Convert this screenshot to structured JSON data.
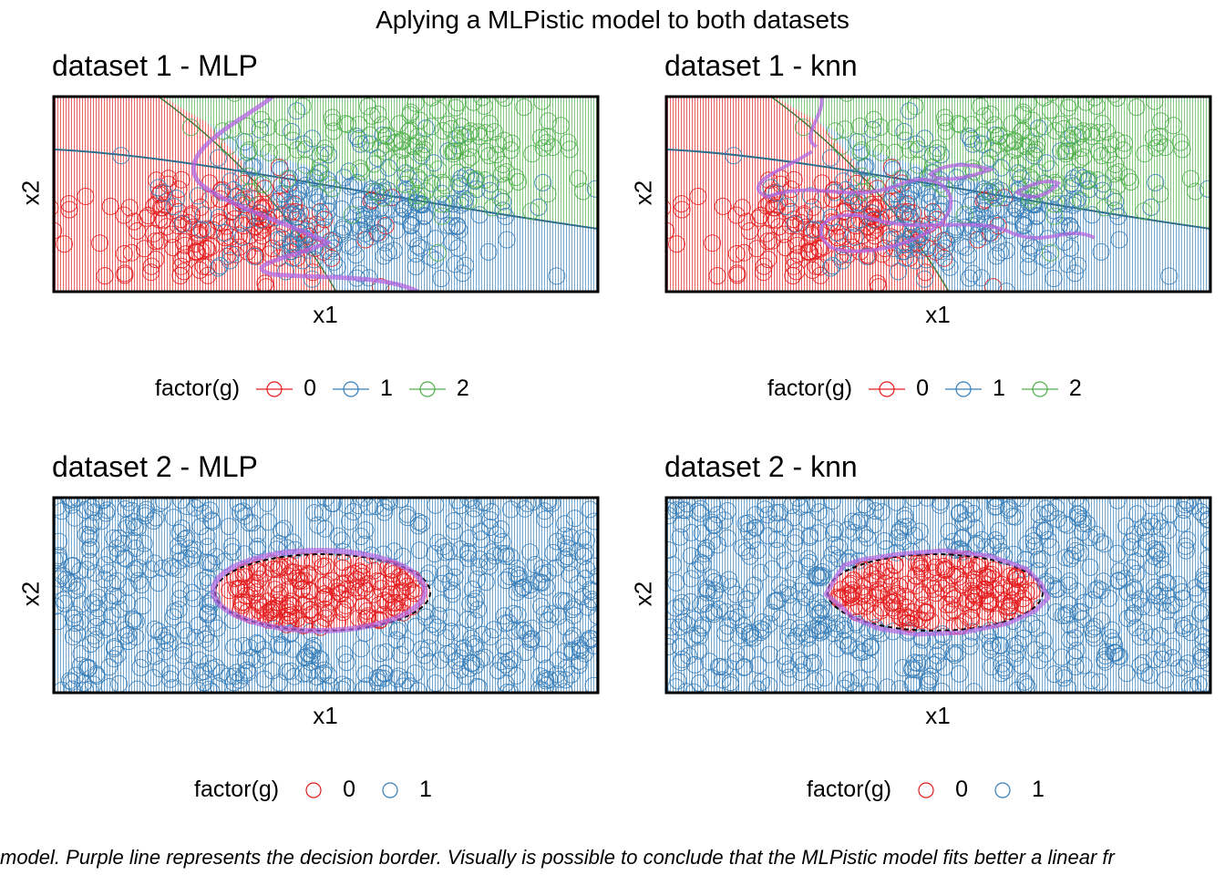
{
  "title": "Aplying a MLPistic model to both datasets",
  "caption": "model. Purple line represents the decision border. Visually is possible to conclude that the MLPistic model fits better a linear  fr",
  "colors": {
    "class0": "#e41a1c",
    "class1": "#377eb8",
    "class2": "#4daf4a",
    "boundary": "#b266e0",
    "true_boundary": "#000000",
    "panel_border": "#000000"
  },
  "chart_data": [
    {
      "type": "scatter",
      "title": "dataset 1 - MLP",
      "xlabel": "x1",
      "ylabel": "x2",
      "legend": {
        "title": "factor(g)",
        "position": "bottom",
        "keys": [
          "0",
          "1",
          "2"
        ]
      },
      "background": "decision-regions",
      "decision_boundary": "purple line",
      "axis_ticks": "none"
    },
    {
      "type": "scatter",
      "title": "dataset 1 - knn",
      "xlabel": "x1",
      "ylabel": "x2",
      "legend": {
        "title": "factor(g)",
        "position": "bottom",
        "keys": [
          "0",
          "1",
          "2"
        ]
      },
      "background": "decision-regions",
      "decision_boundary": "purple line",
      "axis_ticks": "none"
    },
    {
      "type": "scatter",
      "title": "dataset 2 - MLP",
      "xlabel": "x1",
      "ylabel": "x2",
      "legend": {
        "title": "factor(g)",
        "position": "bottom",
        "keys": [
          "0",
          "1"
        ]
      },
      "background": "decision-regions",
      "decision_boundary": "purple line",
      "true_boundary": "black dashed ellipse",
      "axis_ticks": "none"
    },
    {
      "type": "scatter",
      "title": "dataset 2 - knn",
      "xlabel": "x1",
      "ylabel": "x2",
      "legend": {
        "title": "factor(g)",
        "position": "bottom",
        "keys": [
          "0",
          "1"
        ]
      },
      "background": "decision-regions",
      "decision_boundary": "purple line",
      "true_boundary": "black dashed ellipse",
      "axis_ticks": "none"
    }
  ]
}
